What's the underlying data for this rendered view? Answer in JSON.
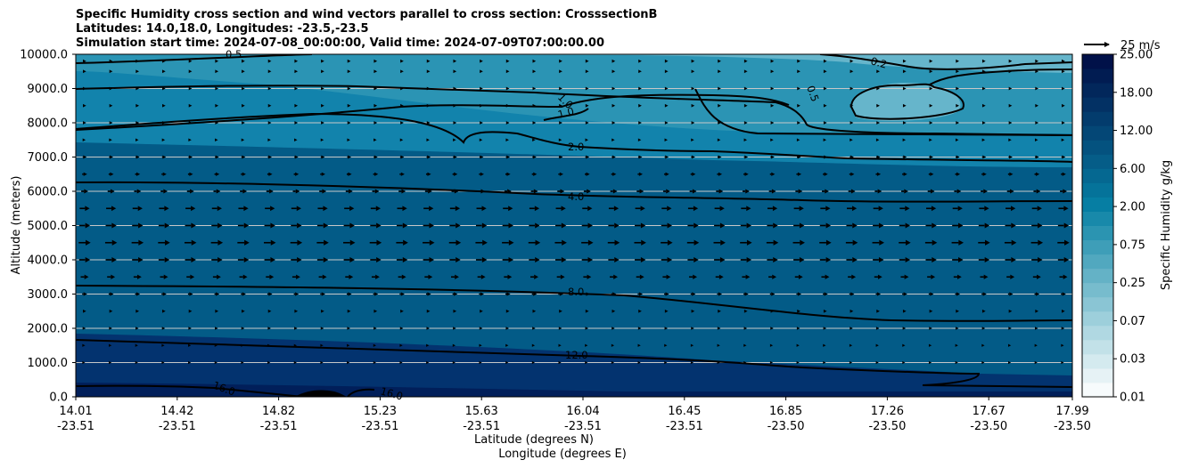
{
  "chart_data": {
    "type": "contour",
    "title_lines": [
      "Specific Humidity cross section and wind vectors parallel to cross section: CrosssectionB",
      "Latitudes: 14.0,18.0, Longitudes: -23.5,-23.5",
      "Simulation start time: 2024-07-08_00:00:00, Valid time: 2024-07-09T07:00:00.00"
    ],
    "ylabel": "Altitude (meters)",
    "xlabel_lines": [
      "Latitude (degrees N)",
      "Longitude (degrees E)"
    ],
    "ylim": [
      0,
      10000
    ],
    "y_ticks": [
      "10000.0",
      "9000.0",
      "8000.0",
      "7000.0",
      "6000.0",
      "5000.0",
      "4000.0",
      "3000.0",
      "2000.0",
      "1000.0",
      "0.0"
    ],
    "x_ticks": [
      {
        "lat": "14.01",
        "lon": "-23.51"
      },
      {
        "lat": "14.42",
        "lon": "-23.51"
      },
      {
        "lat": "14.82",
        "lon": "-23.51"
      },
      {
        "lat": "15.23",
        "lon": "-23.51"
      },
      {
        "lat": "15.63",
        "lon": "-23.51"
      },
      {
        "lat": "16.04",
        "lon": "-23.51"
      },
      {
        "lat": "16.45",
        "lon": "-23.51"
      },
      {
        "lat": "16.85",
        "lon": "-23.50"
      },
      {
        "lat": "17.26",
        "lon": "-23.50"
      },
      {
        "lat": "17.67",
        "lon": "-23.50"
      },
      {
        "lat": "17.99",
        "lon": "-23.50"
      }
    ],
    "grid": true,
    "colorbar": {
      "label": "Specific Humidity g/kg",
      "ticks": [
        "25.00",
        "18.00",
        "12.00",
        "6.00",
        "2.00",
        "0.75",
        "0.25",
        "0.07",
        "0.03",
        "0.01"
      ],
      "levels": [
        0.01,
        0.02,
        0.03,
        0.05,
        0.07,
        0.1,
        0.15,
        0.25,
        0.4,
        0.5,
        0.75,
        1,
        1.5,
        2,
        3,
        4,
        6,
        8,
        10,
        12,
        14,
        16,
        18,
        20,
        25
      ],
      "colors": [
        "#f7fbfc",
        "#e6f2f5",
        "#d4eaef",
        "#c2e1e8",
        "#b0d8e2",
        "#9dcfdb",
        "#8ac5d4",
        "#77bccd",
        "#64b2c6",
        "#51a8bf",
        "#3e9eb8",
        "#2b94b1",
        "#1889aa",
        "#067ea3",
        "#05739a",
        "#056891",
        "#055d88",
        "#04527f",
        "#044776",
        "#033c6d",
        "#033164",
        "#02275b",
        "#011c52",
        "#011149"
      ],
      "scale": "categorical"
    },
    "wind_key": {
      "label": "25 m/s",
      "value": 25
    },
    "contour_labels": [
      "0.5",
      "0.2",
      "0.5",
      "1.0",
      "1.0",
      "2.0",
      "4.0",
      "8.0",
      "12.0",
      "16.0",
      "16.0"
    ],
    "wind_rows": [
      {
        "z": 9800,
        "u": 3
      },
      {
        "z": 9500,
        "u": 3
      },
      {
        "z": 9000,
        "u": 3
      },
      {
        "z": 8500,
        "u": 3
      },
      {
        "z": 8000,
        "u": 3
      },
      {
        "z": 7500,
        "u": 2
      },
      {
        "z": 7000,
        "u": 4
      },
      {
        "z": 6500,
        "u": 5
      },
      {
        "z": 6000,
        "u": 7
      },
      {
        "z": 5500,
        "u": 10
      },
      {
        "z": 5000,
        "u": 11
      },
      {
        "z": 4500,
        "u": 12
      },
      {
        "z": 4000,
        "u": 11
      },
      {
        "z": 3500,
        "u": 8
      },
      {
        "z": 3000,
        "u": 5
      },
      {
        "z": 2500,
        "u": 3
      },
      {
        "z": 2000,
        "u": 2
      },
      {
        "z": 1500,
        "u": 1
      },
      {
        "z": 1000,
        "u": 1
      }
    ],
    "wind_columns": 38
  }
}
